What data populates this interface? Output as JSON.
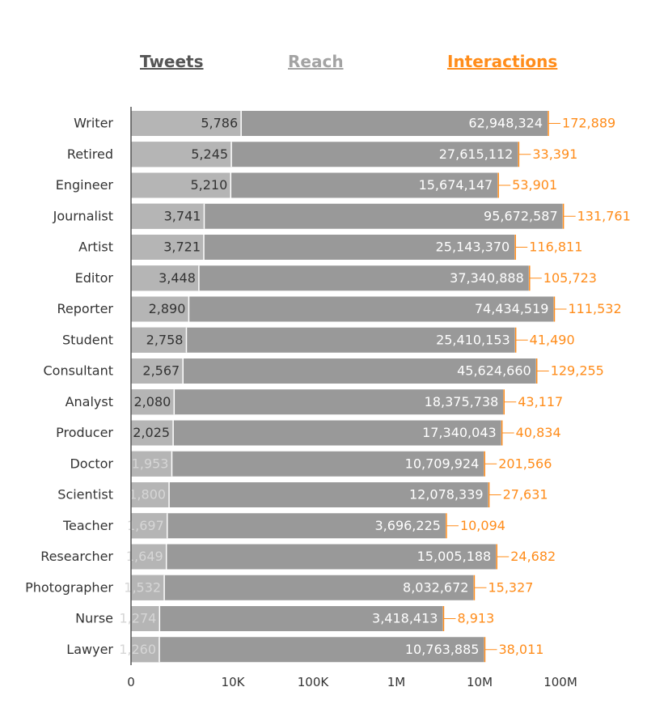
{
  "tabs": {
    "tweets": "Tweets",
    "reach": "Reach",
    "interactions": "Interactions"
  },
  "colors": {
    "tweets_bar": "#b5b5b5",
    "reach_bar": "#999999",
    "interactions": "#ff8c1a",
    "tab_tweets": "#555555",
    "tab_reach": "#a3a3a3",
    "tab_interactions": "#ff8c1a",
    "label": "#333333",
    "faded_label": "#d6d6d6"
  },
  "chart_data": {
    "type": "bar",
    "orientation": "horizontal",
    "xscale": "log",
    "title": "",
    "categories": [
      "Writer",
      "Retired",
      "Engineer",
      "Journalist",
      "Artist",
      "Editor",
      "Reporter",
      "Student",
      "Consultant",
      "Analyst",
      "Producer",
      "Doctor",
      "Scientist",
      "Teacher",
      "Researcher",
      "Photographer",
      "Nurse",
      "Lawyer"
    ],
    "series": [
      {
        "name": "Tweets",
        "values": [
          5786,
          5245,
          5210,
          3741,
          3721,
          3448,
          2890,
          2758,
          2567,
          2080,
          2025,
          1953,
          1800,
          1697,
          1649,
          1532,
          1274,
          1260
        ],
        "labels": [
          "5,786",
          "5,245",
          "5,210",
          "3,741",
          "3,721",
          "3,448",
          "2,890",
          "2,758",
          "2,567",
          "2,080",
          "2,025",
          "1,953",
          "1,800",
          "1,697",
          "1,649",
          "1,532",
          "1,274",
          "1,260"
        ]
      },
      {
        "name": "Reach",
        "values": [
          62948324,
          27615112,
          15674147,
          95672587,
          25143370,
          37340888,
          74434519,
          25410153,
          45624660,
          18375738,
          17340043,
          10709924,
          12078339,
          3696225,
          15005188,
          8032672,
          3418413,
          10763885
        ],
        "labels": [
          "62,948,324",
          "27,615,112",
          "15,674,147",
          "95,672,587",
          "25,143,370",
          "37,340,888",
          "74,434,519",
          "25,410,153",
          "45,624,660",
          "18,375,738",
          "17,340,043",
          "10,709,924",
          "12,078,339",
          "3,696,225",
          "15,005,188",
          "8,032,672",
          "3,418,413",
          "10,763,885"
        ]
      },
      {
        "name": "Interactions",
        "values": [
          172889,
          33391,
          53901,
          131761,
          116811,
          105723,
          111532,
          41490,
          129255,
          43117,
          40834,
          201566,
          27631,
          10094,
          24682,
          15327,
          8913,
          38011
        ],
        "labels": [
          "172,889",
          "33,391",
          "53,901",
          "131,761",
          "116,811",
          "105,723",
          "111,532",
          "41,490",
          "129,255",
          "43,117",
          "40,834",
          "201,566",
          "27,631",
          "10,094",
          "24,682",
          "15,327",
          "8,913",
          "38,011"
        ]
      }
    ],
    "xticks": [
      "0",
      "10K",
      "100K",
      "1M",
      "10M",
      "100M"
    ],
    "xtick_values": [
      1,
      10000,
      100000,
      1000000,
      10000000,
      100000000
    ],
    "xlabel": "",
    "ylabel": ""
  }
}
